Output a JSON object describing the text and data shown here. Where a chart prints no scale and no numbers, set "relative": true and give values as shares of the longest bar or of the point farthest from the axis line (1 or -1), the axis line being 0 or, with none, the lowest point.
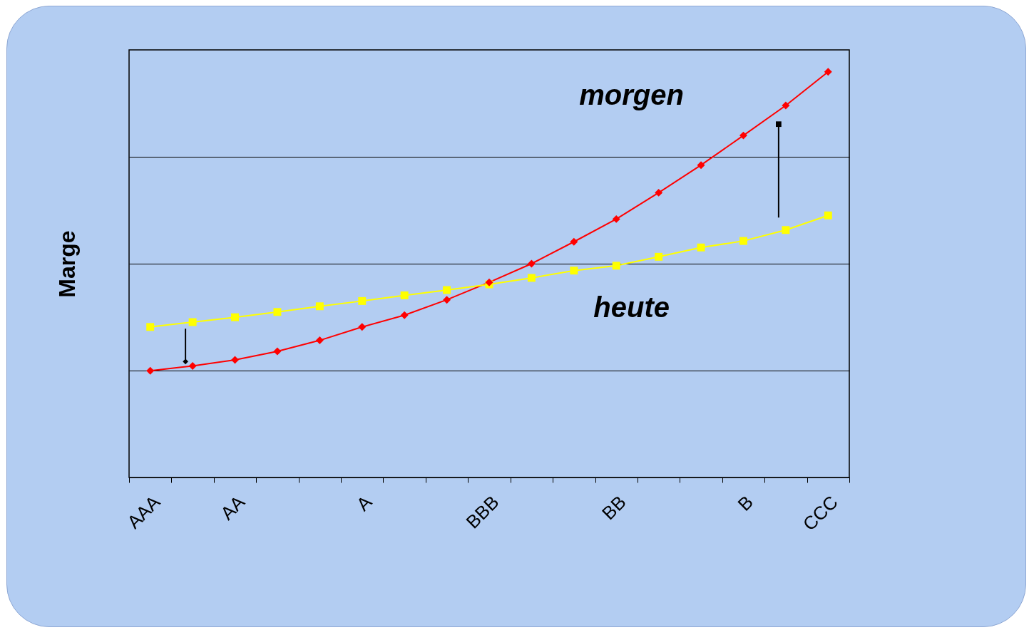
{
  "chart_data": {
    "type": "line",
    "relative": true,
    "ylabel": "Marge",
    "grid": "y",
    "legend": false,
    "categories": [
      "AAA",
      null,
      "AA",
      null,
      null,
      "A",
      null,
      null,
      "BBB",
      null,
      null,
      "BB",
      null,
      null,
      "B",
      null,
      "CCC"
    ],
    "series": [
      {
        "name": "morgen",
        "color": "#ff0000",
        "marker": "diamond",
        "values": [
          0.263,
          0.275,
          0.29,
          0.311,
          0.338,
          0.371,
          0.4,
          0.438,
          0.481,
          0.527,
          0.581,
          0.637,
          0.702,
          0.77,
          0.843,
          0.917,
          1
        ]
      },
      {
        "name": "heute",
        "color": "#ffff00",
        "marker": "square",
        "values": [
          0.371,
          0.383,
          0.395,
          0.408,
          0.422,
          0.435,
          0.449,
          0.462,
          0.476,
          0.492,
          0.51,
          0.522,
          0.544,
          0.567,
          0.583,
          0.61,
          0.646
        ]
      }
    ]
  }
}
